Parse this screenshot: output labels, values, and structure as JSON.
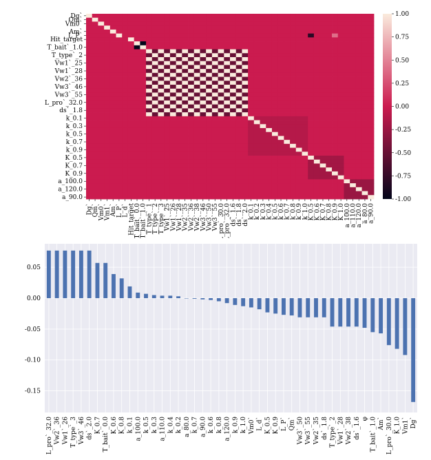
{
  "colors": {
    "heatmap_low": "#03051a",
    "heatmap_mid": "#cb1b4f",
    "heatmap_high": "#faebdd",
    "bar_color": "#4c72b0",
    "bar_plot_background": "#eaeaf2",
    "grid": "#ffffff"
  },
  "chart_data": [
    {
      "type": "heatmap",
      "row_labels": [
        "Dg`",
        "Qm`",
        "Vm0`",
        "Vm1`",
        "Am`",
        "L_P`",
        "Hit_target",
        "T_bait`_0.0",
        "T_bait`_1.0",
        "T_type`_1",
        "T_type`_2",
        "T_type`_3",
        "Vw1`_25",
        "Vw1`_26",
        "Vw1`_28",
        "Vw2`_35",
        "Vw2`_36",
        "Vw2`_38",
        "Vw3`_46",
        "Vw3`_50",
        "Vw3`_55",
        "L_pro`_30.0",
        "L_pro`_32.0",
        "ds`_1.6",
        "ds`_1.8",
        "ds`_2.0",
        "k_0.1",
        "k_0.2",
        "k_0.3",
        "k_0.4",
        "k_0.5",
        "k_0.6",
        "k_0.7",
        "k_0.8",
        "k_0.9",
        "k_1.0",
        "K_0.5",
        "K_0.6",
        "K_0.7",
        "K_0.8",
        "K_0.9",
        "K_1.0",
        "a_100.0",
        "a_110.0",
        "a_120.0",
        "a_80.0",
        "a_90.0"
      ],
      "y_tick_labels": [
        "Dg`",
        "Qm`",
        "Vm0`",
        "Am`",
        "L_P`",
        "Hit_target",
        "T_bait`_1.0",
        "T_type`_2",
        "Vw1`_25",
        "Vw1`_28",
        "Vw2`_36",
        "Vw3`_46",
        "Vw3`_55",
        "L_pro`_32.0",
        "ds`_1.8",
        "k_0.1",
        "k_0.3",
        "k_0.5",
        "k_0.7",
        "k_0.9",
        "K_0.5",
        "K_0.7",
        "K_0.9",
        "a_100.0",
        "a_120.0",
        "a_90.0"
      ],
      "x_tick_labels": [
        "Dg`",
        "Qm`",
        "Vm0`",
        "Vm1`",
        "Am`",
        "L_P`",
        "L_d`",
        "Hit_target",
        "T_bait`_0.0",
        "T_bait`_1.0",
        "T_type`_1",
        "T_type`_2",
        "T_type`_3",
        "Vw1`_25",
        "Vw1`_26",
        "Vw1`_28",
        "Vw2`_35",
        "Vw2`_36",
        "Vw2`_38",
        "Vw3`_46",
        "Vw3`_50",
        "Vw3`_55",
        "L_pro`_30.0",
        "L_pro`_32.0",
        "ds`_1.6",
        "ds`_1.8",
        "ds`_2.0",
        "k_0.1",
        "k_0.2",
        "k_0.3",
        "k_0.4",
        "k_0.5",
        "k_0.6",
        "k_0.7",
        "k_0.8",
        "k_0.9",
        "k_1.0",
        "K_0.5",
        "K_0.6",
        "K_0.7",
        "K_0.8",
        "K_0.9",
        "K_1.0",
        "a_100.0",
        "a_110.0",
        "a_120.0",
        "a_80.0",
        "a_90.0"
      ],
      "vmin": -1.0,
      "vmax": 1.0,
      "colorbar_ticks": [
        "1.00",
        "0.75",
        "0.50",
        "0.25",
        "0.00",
        "-0.25",
        "-0.50",
        "-0.75",
        "-1.00"
      ],
      "approximate_structure": {
        "diagonal": 1.0,
        "off_diagonal_background": 0.0,
        "T_bait_pair": -1.0,
        "design_block_rows": "T_type`_1 .. ds`_2.0",
        "design_block_pattern": [
          1.0,
          -0.5
        ],
        "k_block": -0.11,
        "K_block": -0.2,
        "a_block": -0.25,
        "L_P_with_K_0.5": -0.8,
        "L_P_with_K_0.9": 0.4
      }
    },
    {
      "type": "bar",
      "categories": [
        "L_pro`_32.0",
        "Vw2`_36",
        "Vw1`_26",
        "T_type`_3",
        "Vw3`_46",
        "ds`_2.0",
        "K_0.7",
        "T_bait`_0.0",
        "K_0.6",
        "K_0.8",
        "k_0.1",
        "a_100.0",
        "k_0.5",
        "k_0.3",
        "a_110.0",
        "k_0.4",
        "k_0.2",
        "a_80.0",
        "k_0.7",
        "a_90.0",
        "k_0.6",
        "k_0.8",
        "a_120.0",
        "k_0.9",
        "k_1.0",
        "Vm0`",
        "L_d`",
        "K_0.5",
        "K_0.9",
        "L_P`",
        "Qm`",
        "Vw3`_50",
        "Vw3`_55",
        "Vw2`_35",
        "ds`_1.8",
        "T_type`_2",
        "Vw1`_28",
        "Vw2`_38",
        "ds`_1.6",
        "φ",
        "T_bait`_1.0",
        "Am`",
        "L_pro`_30.0",
        "K_1.0",
        "Vm1`",
        "Dg`"
      ],
      "values": [
        0.077,
        0.077,
        0.077,
        0.077,
        0.077,
        0.077,
        0.057,
        0.057,
        0.039,
        0.032,
        0.019,
        0.009,
        0.007,
        0.005,
        0.004,
        0.004,
        0.003,
        0.0,
        -0.001,
        -0.002,
        -0.003,
        -0.005,
        -0.008,
        -0.011,
        -0.013,
        -0.015,
        -0.018,
        -0.023,
        -0.025,
        -0.027,
        -0.028,
        -0.031,
        -0.031,
        -0.031,
        -0.031,
        -0.046,
        -0.046,
        -0.046,
        -0.046,
        -0.048,
        -0.055,
        -0.057,
        -0.076,
        -0.082,
        -0.092,
        -0.168
      ],
      "yticks": [
        "0.05",
        "0.00",
        "-0.05",
        "-0.10",
        "-0.15"
      ],
      "ylim": [
        -0.185,
        0.088
      ],
      "grid": true
    }
  ]
}
